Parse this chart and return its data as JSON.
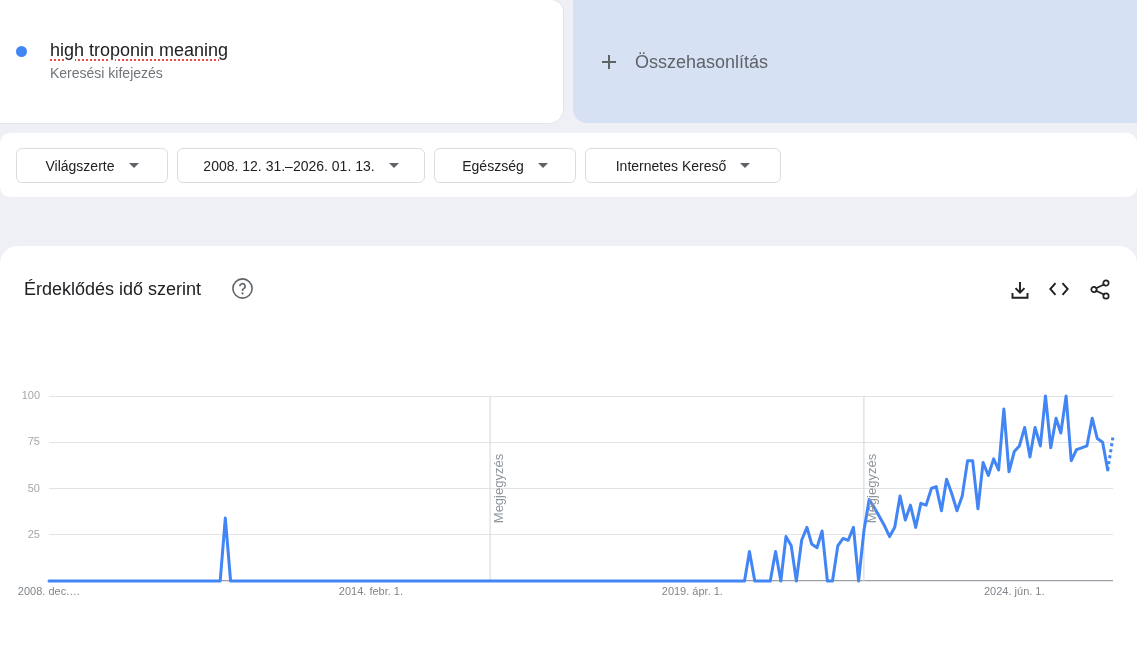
{
  "chart_data": {
    "type": "line",
    "title": "Érdeklődés idő szerint",
    "x": [
      "2008-12",
      "2011-09",
      "2011-10",
      "2011-11",
      "2020-02",
      "2020-03",
      "2020-04",
      "2020-05",
      "2020-06",
      "2020-07",
      "2020-08",
      "2020-09",
      "2020-10",
      "2020-11",
      "2020-12",
      "2021-01",
      "2021-02",
      "2021-03",
      "2021-04",
      "2021-05",
      "2021-06",
      "2021-07",
      "2021-08",
      "2021-09",
      "2021-10",
      "2021-11",
      "2021-12",
      "2022-01",
      "2022-02",
      "2022-03",
      "2022-04",
      "2022-05",
      "2022-06",
      "2022-07",
      "2022-08",
      "2022-09",
      "2022-10",
      "2022-11",
      "2022-12",
      "2023-01",
      "2023-02",
      "2023-03",
      "2023-04",
      "2023-05",
      "2023-06",
      "2023-07",
      "2023-08",
      "2023-09",
      "2023-10",
      "2023-11",
      "2023-12",
      "2024-01",
      "2024-02",
      "2024-03",
      "2024-04",
      "2024-05",
      "2024-06",
      "2024-07",
      "2024-08",
      "2024-09",
      "2024-10",
      "2024-11",
      "2024-12",
      "2025-01",
      "2025-02",
      "2025-03",
      "2025-04",
      "2025-05",
      "2025-06",
      "2025-07",
      "2025-08",
      "2025-09",
      "2025-10",
      "2025-11",
      "2025-12"
    ],
    "series": [
      {
        "name": "high troponin meaning",
        "color": "#4285f4",
        "values": [
          0,
          0,
          34,
          0,
          0,
          16,
          0,
          0,
          0,
          0,
          16,
          0,
          24,
          19,
          0,
          22,
          29,
          20,
          18,
          27,
          0,
          0,
          19,
          23,
          22,
          29,
          0,
          27,
          44,
          40,
          35,
          30,
          24,
          29,
          46,
          33,
          41,
          29,
          42,
          41,
          50,
          51,
          38,
          55,
          47,
          38,
          46,
          65,
          65,
          39,
          64,
          57,
          66,
          60,
          93,
          59,
          70,
          73,
          83,
          67,
          83,
          73,
          100,
          72,
          88,
          80,
          100,
          65,
          71,
          72,
          73,
          88,
          77,
          75,
          60
        ]
      },
      {
        "color": "#4285f4",
        "line_style": "dotted",
        "x": [
          "2025-12",
          "2026-01"
        ],
        "values": [
          60,
          78
        ]
      }
    ],
    "xlim": [
      "2008-12",
      "2026-01"
    ],
    "xticks": [
      {
        "value": "2008-12-01",
        "label": "2008. dec.…"
      },
      {
        "value": "2014-02-01",
        "label": "2014. febr. 1."
      },
      {
        "value": "2019-04-01",
        "label": "2019. ápr. 1."
      },
      {
        "value": "2024-06-01",
        "label": "2024. jún. 1."
      }
    ],
    "ylim": [
      0,
      100
    ],
    "yticks": [
      {
        "value": 0,
        "label": null
      },
      25,
      50,
      75,
      100
    ],
    "grid": "y",
    "legend": "top left",
    "marker": "none",
    "ref_lines": [
      {
        "axis": "x",
        "value": "2016-01",
        "label": "Megjegyzés",
        "color": "#dadce0"
      },
      {
        "axis": "x",
        "value": "2022-01",
        "label": "Megjegyzés",
        "color": "#dadce0"
      }
    ],
    "annotations": [
      "Keresési kifejezés",
      "Összehasonlítás",
      "Világszerte",
      "2008. 12. 31.–2026. 01. 13.",
      "Egészség",
      "Internetes Kereső"
    ]
  }
}
